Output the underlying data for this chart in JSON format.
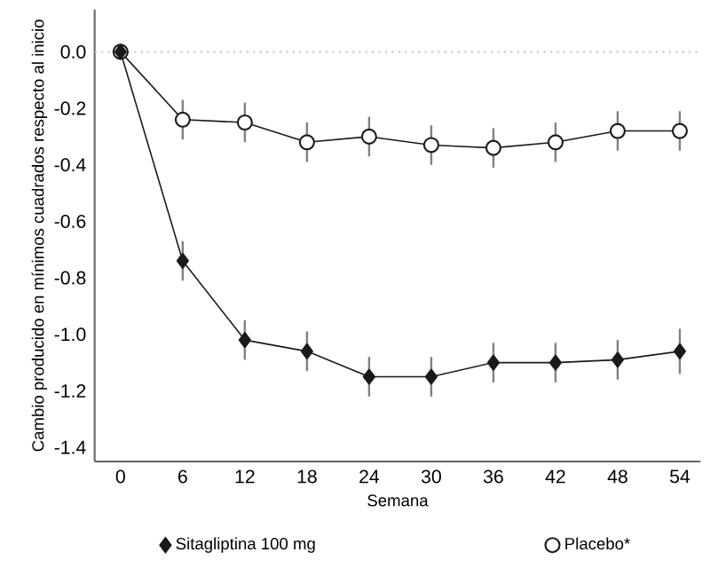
{
  "chart_data": {
    "type": "line",
    "xlabel": "Semana",
    "ylabel": "Cambio producido en mínimos cuadrados respecto al inicio",
    "x": [
      0,
      6,
      12,
      18,
      24,
      30,
      36,
      42,
      48,
      54
    ],
    "series": [
      {
        "name": "Sitagliptina 100 mg",
        "color": "#1a1a1a",
        "marker": "diamond",
        "values": [
          0,
          -0.74,
          -1.02,
          -1.06,
          -1.15,
          -1.15,
          -1.1,
          -1.1,
          -1.09,
          -1.06
        ],
        "errors": [
          null,
          0.07,
          0.07,
          0.07,
          0.07,
          0.07,
          0.07,
          0.07,
          0.07,
          0.08
        ]
      },
      {
        "name": "Placebo*",
        "color": "#1a1a1a",
        "marker": "circle",
        "values": [
          0,
          -0.24,
          -0.25,
          -0.32,
          -0.3,
          -0.33,
          -0.34,
          -0.32,
          -0.28,
          -0.28
        ],
        "errors": [
          null,
          0.07,
          0.07,
          0.07,
          0.07,
          0.07,
          0.07,
          0.07,
          0.07,
          0.07
        ]
      }
    ],
    "xlim": [
      -2.5,
      56
    ],
    "ylim": [
      -1.45,
      0.15
    ],
    "xticks": [
      0,
      6,
      12,
      18,
      24,
      30,
      36,
      42,
      48,
      54
    ],
    "yticks": [
      {
        "value": 0,
        "label": "0.0"
      },
      {
        "value": -0.2,
        "label": "-0.2"
      },
      {
        "value": -0.4,
        "label": "-0.4"
      },
      {
        "value": -0.6,
        "label": "-0.6"
      },
      {
        "value": -0.8,
        "label": "-0.8"
      },
      {
        "value": -1.0,
        "label": "-1.0"
      },
      {
        "value": -1.2,
        "label": "-1.2"
      },
      {
        "value": -1.4,
        "label": "-1.4"
      }
    ],
    "ref_lines": [
      {
        "axis": "y",
        "value": 0,
        "color": "#c8c8c8",
        "line_style": "dotted"
      }
    ],
    "legend": "bottom",
    "grid": false
  }
}
